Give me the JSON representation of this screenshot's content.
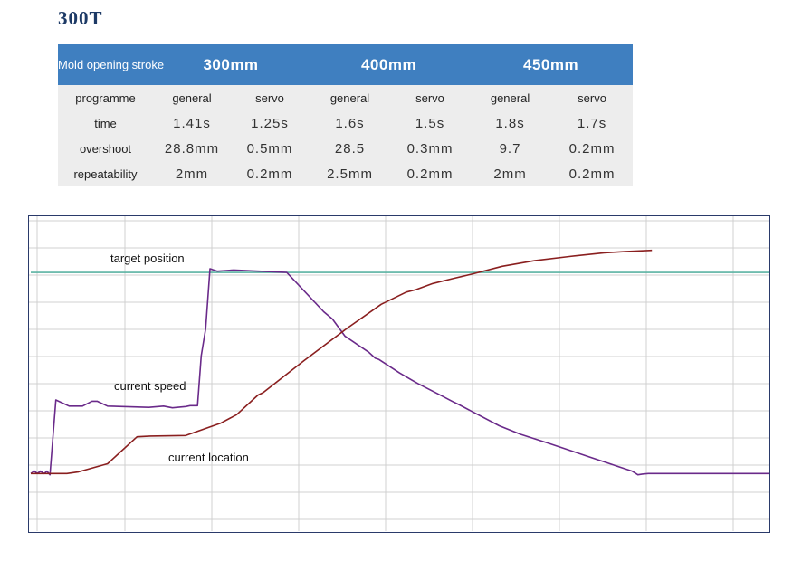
{
  "page_title": "300T",
  "table": {
    "corner_label": "Mold opening stroke",
    "strokes": [
      "300mm",
      "400mm",
      "450mm"
    ],
    "row_labels": [
      "programme",
      "time",
      "overshoot",
      "repeatability"
    ],
    "programmes": [
      "general",
      "servo",
      "general",
      "servo",
      "general",
      "servo"
    ],
    "time": [
      "1.41s",
      "1.25s",
      "1.6s",
      "1.5s",
      "1.8s",
      "1.7s"
    ],
    "overshoot": [
      "28.8mm",
      "0.5mm",
      "28.5",
      "0.3mm",
      "9.7",
      "0.2mm"
    ],
    "repeatability": [
      "2mm",
      "0.2mm",
      "2.5mm",
      "0.2mm",
      "2mm",
      "0.2mm"
    ]
  },
  "colors": {
    "header_bg": "#3f7fc0",
    "row_bg": "#ededed",
    "target_line": "#5bb3a3",
    "speed_line": "#6a2a8a",
    "location_line": "#8a1f1f",
    "grid": "#d0d0d0",
    "border": "#2a3a6a"
  },
  "chart_data": {
    "type": "line",
    "grid": true,
    "x_range": [
      0,
      100
    ],
    "y_range": [
      0,
      100
    ],
    "annotations": {
      "target": "target position",
      "speed": "current speed",
      "location": "current location"
    },
    "series": [
      {
        "name": "target position",
        "values": [
          [
            0,
            90
          ],
          [
            100,
            90
          ]
        ]
      },
      {
        "name": "current speed",
        "values": [
          [
            0,
            8
          ],
          [
            0.5,
            9
          ],
          [
            0.9,
            8
          ],
          [
            1.3,
            9
          ],
          [
            1.8,
            8
          ],
          [
            2.2,
            9
          ],
          [
            2.6,
            7.5
          ],
          [
            3.4,
            38
          ],
          [
            5.2,
            35.5
          ],
          [
            7,
            35.5
          ],
          [
            8.3,
            37.5
          ],
          [
            9,
            37.5
          ],
          [
            10.4,
            35.5
          ],
          [
            16,
            35
          ],
          [
            18,
            35.5
          ],
          [
            19.2,
            34.8
          ],
          [
            21,
            35.3
          ],
          [
            21.6,
            35.7
          ],
          [
            22.6,
            35.7
          ],
          [
            23.1,
            56
          ],
          [
            23.7,
            67
          ],
          [
            24.3,
            91.5
          ],
          [
            25.3,
            90.5
          ],
          [
            27.5,
            91
          ],
          [
            34.7,
            90
          ],
          [
            39.7,
            74
          ],
          [
            40.3,
            72.5
          ],
          [
            40.9,
            71
          ],
          [
            42.6,
            64
          ],
          [
            45.8,
            57.5
          ],
          [
            46.7,
            55
          ],
          [
            47.2,
            54.5
          ],
          [
            50,
            49
          ],
          [
            51.7,
            46
          ],
          [
            52.6,
            44.5
          ],
          [
            55.5,
            40
          ],
          [
            57.1,
            37.5
          ],
          [
            58.1,
            36
          ],
          [
            60,
            33
          ],
          [
            63.5,
            27.5
          ],
          [
            66.4,
            24
          ],
          [
            70,
            20.5
          ],
          [
            73.5,
            17
          ],
          [
            75.5,
            15
          ],
          [
            77.5,
            13
          ],
          [
            79.5,
            11
          ],
          [
            81.5,
            9
          ],
          [
            82.3,
            7.5
          ],
          [
            82.9,
            7.8
          ],
          [
            83.7,
            8
          ],
          [
            100,
            8
          ]
        ]
      },
      {
        "name": "current location",
        "values": [
          [
            0,
            8
          ],
          [
            4.9,
            8
          ],
          [
            6.5,
            8.7
          ],
          [
            10.4,
            12
          ],
          [
            14.4,
            23
          ],
          [
            16.2,
            23.3
          ],
          [
            21,
            23.5
          ],
          [
            25.7,
            28.5
          ],
          [
            27.9,
            32
          ],
          [
            30.8,
            40
          ],
          [
            31.5,
            41
          ],
          [
            37,
            54
          ],
          [
            43,
            67.5
          ],
          [
            47.5,
            77
          ],
          [
            50.9,
            82
          ],
          [
            52.2,
            83
          ],
          [
            54.5,
            85.5
          ],
          [
            57.2,
            87.5
          ],
          [
            60,
            89.5
          ],
          [
            63.9,
            92.5
          ],
          [
            68.3,
            94.8
          ],
          [
            73,
            96.5
          ],
          [
            77.7,
            98
          ],
          [
            80.5,
            98.5
          ],
          [
            84.2,
            99
          ]
        ]
      }
    ]
  }
}
